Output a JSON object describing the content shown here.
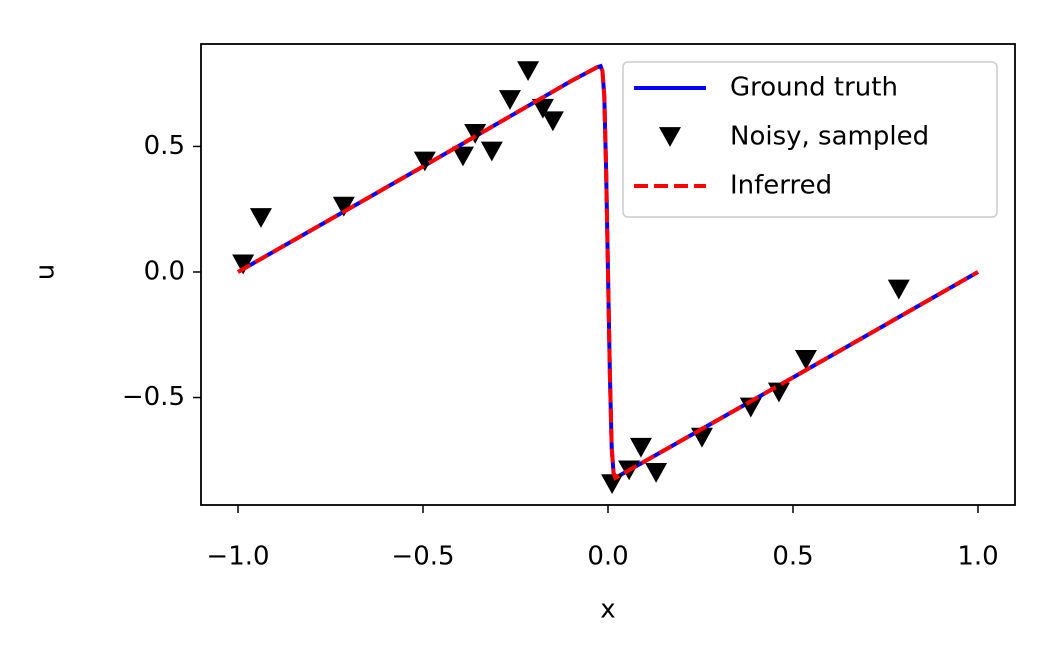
{
  "chart_data": {
    "type": "line",
    "xlabel": "x",
    "ylabel": "u",
    "xlim": [
      -1.1,
      1.1
    ],
    "ylim": [
      -0.928,
      0.908
    ],
    "xticks": [
      {
        "value": -1,
        "label": "−1.0"
      },
      {
        "value": -0.5,
        "label": "−0.5"
      },
      {
        "value": 0,
        "label": "0.0"
      },
      0.5,
      {
        "value": 1,
        "label": "1.0"
      }
    ],
    "yticks": [
      {
        "value": -0.5,
        "label": "−0.5"
      },
      {
        "value": 0,
        "label": "0.0"
      },
      0.5
    ],
    "legend": "upper right",
    "series": [
      {
        "name": "Ground truth",
        "kind": "line",
        "linestyle": "solid",
        "color": "#0000ff",
        "x": [
          -1,
          -0.5,
          -0.1,
          -0.03,
          -0.02,
          -0.015,
          -0.01,
          -0.005,
          0,
          0.005,
          0.01,
          0.015,
          0.02,
          0.5,
          1
        ],
        "values": [
          0,
          0.42,
          0.76,
          0.815,
          0.82,
          0.8,
          0.7,
          0.4,
          0,
          -0.4,
          -0.7,
          -0.8,
          -0.82,
          -0.42,
          0
        ]
      },
      {
        "name": "Noisy, sampled",
        "kind": "scatter",
        "marker": "triangle-down",
        "color": "#000000",
        "x": [
          -0.986,
          -0.938,
          -0.714,
          -0.495,
          -0.392,
          -0.359,
          -0.314,
          -0.265,
          -0.216,
          -0.176,
          -0.149,
          0.011,
          0.057,
          0.089,
          0.13,
          0.254,
          0.386,
          0.462,
          0.535,
          0.786
        ],
        "values": [
          0.03,
          0.215,
          0.26,
          0.44,
          0.46,
          0.55,
          0.48,
          0.685,
          0.8,
          0.65,
          0.6,
          -0.845,
          -0.79,
          -0.7,
          -0.8,
          -0.66,
          -0.54,
          -0.48,
          -0.35,
          -0.07
        ]
      },
      {
        "name": "Inferred",
        "kind": "line",
        "linestyle": "dashed",
        "color": "#ff0000",
        "x": [
          -1,
          -0.5,
          -0.1,
          -0.03,
          -0.02,
          -0.015,
          -0.01,
          -0.005,
          0,
          0.005,
          0.01,
          0.015,
          0.02,
          0.5,
          1
        ],
        "values": [
          0,
          0.42,
          0.76,
          0.815,
          0.82,
          0.8,
          0.7,
          0.4,
          0,
          -0.4,
          -0.7,
          -0.8,
          -0.82,
          -0.42,
          0
        ]
      }
    ]
  }
}
